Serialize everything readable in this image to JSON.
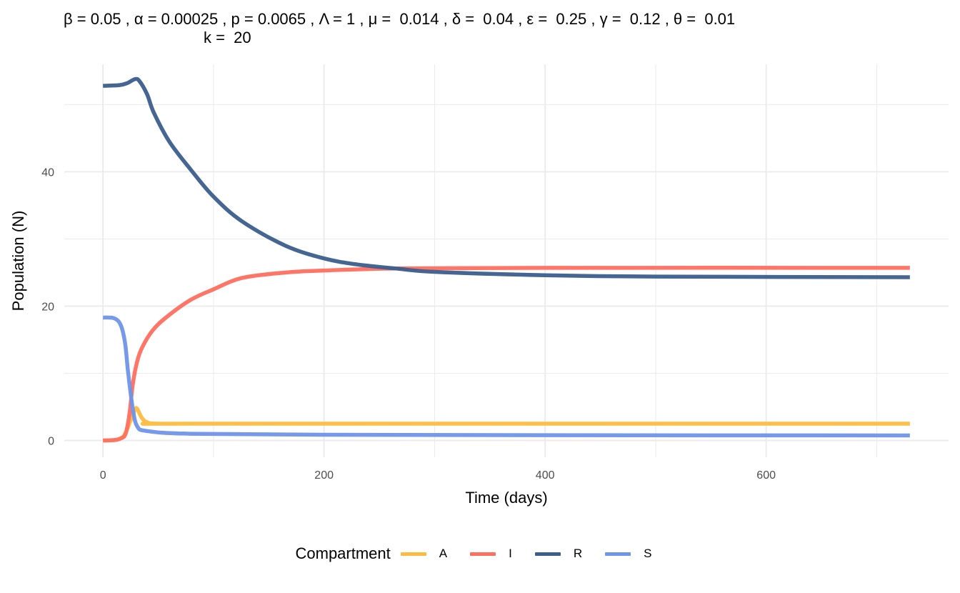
{
  "chart_data": {
    "type": "line",
    "title_line1": "β = 0.05 , α = 0.00025 , p = 0.0065 , Λ = 1 , μ =  0.014 , δ =  0.04 , ε =  0.25 , γ =  0.12 , θ =  0.01",
    "title_line2": "k =  20",
    "xlabel": "Time (days)",
    "ylabel": "Population (N)",
    "xlim": [
      -35,
      765
    ],
    "ylim": [
      -2.5,
      56
    ],
    "x_ticks": [
      0,
      200,
      400,
      600
    ],
    "y_ticks": [
      0,
      20,
      40
    ],
    "grid": true,
    "legend": {
      "title": "Compartment",
      "position": "bottom"
    },
    "series": [
      {
        "name": "A",
        "color": "#FDBB40",
        "points": [
          [
            0,
            0
          ],
          [
            10,
            0.05
          ],
          [
            16,
            0.3
          ],
          [
            20,
            1.0
          ],
          [
            25,
            3.0
          ],
          [
            29,
            4.6
          ],
          [
            31,
            4.7
          ],
          [
            35,
            3.4
          ],
          [
            40,
            2.7
          ],
          [
            50,
            2.5
          ],
          [
            100,
            2.5
          ],
          [
            730,
            2.5
          ]
        ]
      },
      {
        "name": "I",
        "color": "#FF6F61",
        "points": [
          [
            0,
            0
          ],
          [
            10,
            0.05
          ],
          [
            16,
            0.3
          ],
          [
            20.5,
            1.0
          ],
          [
            24,
            4.0
          ],
          [
            27,
            8.4
          ],
          [
            31,
            11.8
          ],
          [
            35.6,
            13.9
          ],
          [
            45,
            16.4
          ],
          [
            57,
            18.3
          ],
          [
            79,
            20.9
          ],
          [
            100,
            22.5
          ],
          [
            126,
            24.2
          ],
          [
            165,
            25.0
          ],
          [
            200,
            25.3
          ],
          [
            265,
            25.6
          ],
          [
            400,
            25.7
          ],
          [
            730,
            25.7
          ]
        ]
      },
      {
        "name": "R",
        "color": "#3B5E8C",
        "points": [
          [
            0,
            52.8
          ],
          [
            15,
            52.9
          ],
          [
            22,
            53.2
          ],
          [
            29,
            53.8
          ],
          [
            33,
            53.5
          ],
          [
            40,
            51.5
          ],
          [
            46,
            48.8
          ],
          [
            60,
            44.5
          ],
          [
            79,
            40.4
          ],
          [
            100,
            36.3
          ],
          [
            126,
            32.6
          ],
          [
            165,
            29.0
          ],
          [
            200,
            27.1
          ],
          [
            230,
            26.2
          ],
          [
            265,
            25.6
          ],
          [
            300,
            25.1
          ],
          [
            400,
            24.6
          ],
          [
            500,
            24.4
          ],
          [
            730,
            24.3
          ]
        ]
      },
      {
        "name": "S",
        "color": "#6F95E8",
        "points": [
          [
            0,
            18.3
          ],
          [
            10,
            18.2
          ],
          [
            16,
            17.2
          ],
          [
            20,
            14.5
          ],
          [
            22.7,
            10.2
          ],
          [
            27,
            4.7
          ],
          [
            31,
            2.1
          ],
          [
            40,
            1.4
          ],
          [
            79,
            1.0
          ],
          [
            200,
            0.85
          ],
          [
            400,
            0.78
          ],
          [
            730,
            0.75
          ]
        ]
      }
    ]
  }
}
